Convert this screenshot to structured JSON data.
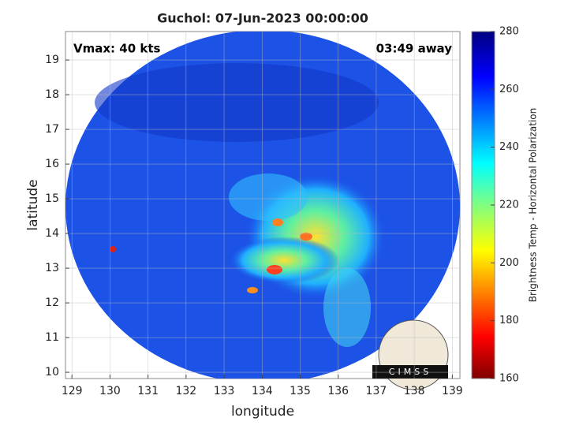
{
  "chart_data": {
    "type": "image",
    "title": "Guchol: 07-Jun-2023 00:00:00",
    "xlabel": "longitude",
    "ylabel": "latitude",
    "annotations": [
      "Vmax: 40 kts",
      "03:49 away"
    ],
    "xlim": [
      128.83,
      139.2
    ],
    "xticks": [
      129,
      130,
      131,
      132,
      133,
      134,
      135,
      136,
      137,
      138,
      139
    ],
    "ylim": [
      9.82,
      19.82
    ],
    "yticks": [
      10,
      11,
      12,
      13,
      14,
      15,
      16,
      17,
      18,
      19
    ],
    "grid": true,
    "colorbar": {
      "label": "Brightness Temp - Horizontal Polarization",
      "lim": [
        160,
        280
      ],
      "ticks": [
        160,
        180,
        200,
        220,
        240,
        260,
        280
      ]
    },
    "logo_text": "CIMSS"
  }
}
